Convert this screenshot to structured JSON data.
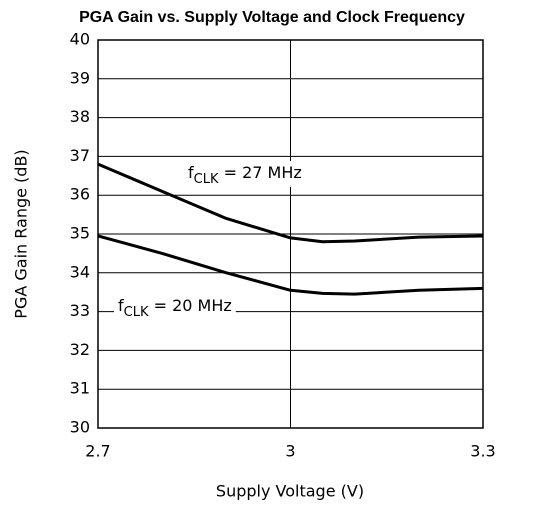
{
  "chart_data": {
    "type": "line",
    "title": "PGA Gain vs. Supply Voltage and Clock Frequency",
    "x_label": "Supply Voltage (V)",
    "y_label": "PGA Gain Range (dB)",
    "x": [
      2.7,
      2.8,
      2.9,
      3.0,
      3.05,
      3.1,
      3.2,
      3.3
    ],
    "series": [
      {
        "name": [
          "f",
          "CLK",
          " = 27 MHz"
        ],
        "color": "#000000",
        "values": [
          36.8,
          36.1,
          35.4,
          34.9,
          34.8,
          34.82,
          34.92,
          34.95
        ]
      },
      {
        "name": [
          "f",
          "CLK",
          " = 20 MHz"
        ],
        "color": "#000000",
        "values": [
          34.95,
          34.5,
          34.0,
          33.55,
          33.47,
          33.45,
          33.55,
          33.6
        ]
      }
    ],
    "xlim": [
      2.7,
      3.3
    ],
    "xticks": [
      {
        "value": 2.7,
        "label": "2.7"
      },
      {
        "value": 3,
        "label": "3"
      },
      {
        "value": 3.3,
        "label": "3.3"
      }
    ],
    "ylim": [
      30,
      40
    ],
    "yticks": [
      30,
      31,
      32,
      33,
      34,
      35,
      36,
      37,
      38,
      39,
      40
    ],
    "grid": true
  }
}
